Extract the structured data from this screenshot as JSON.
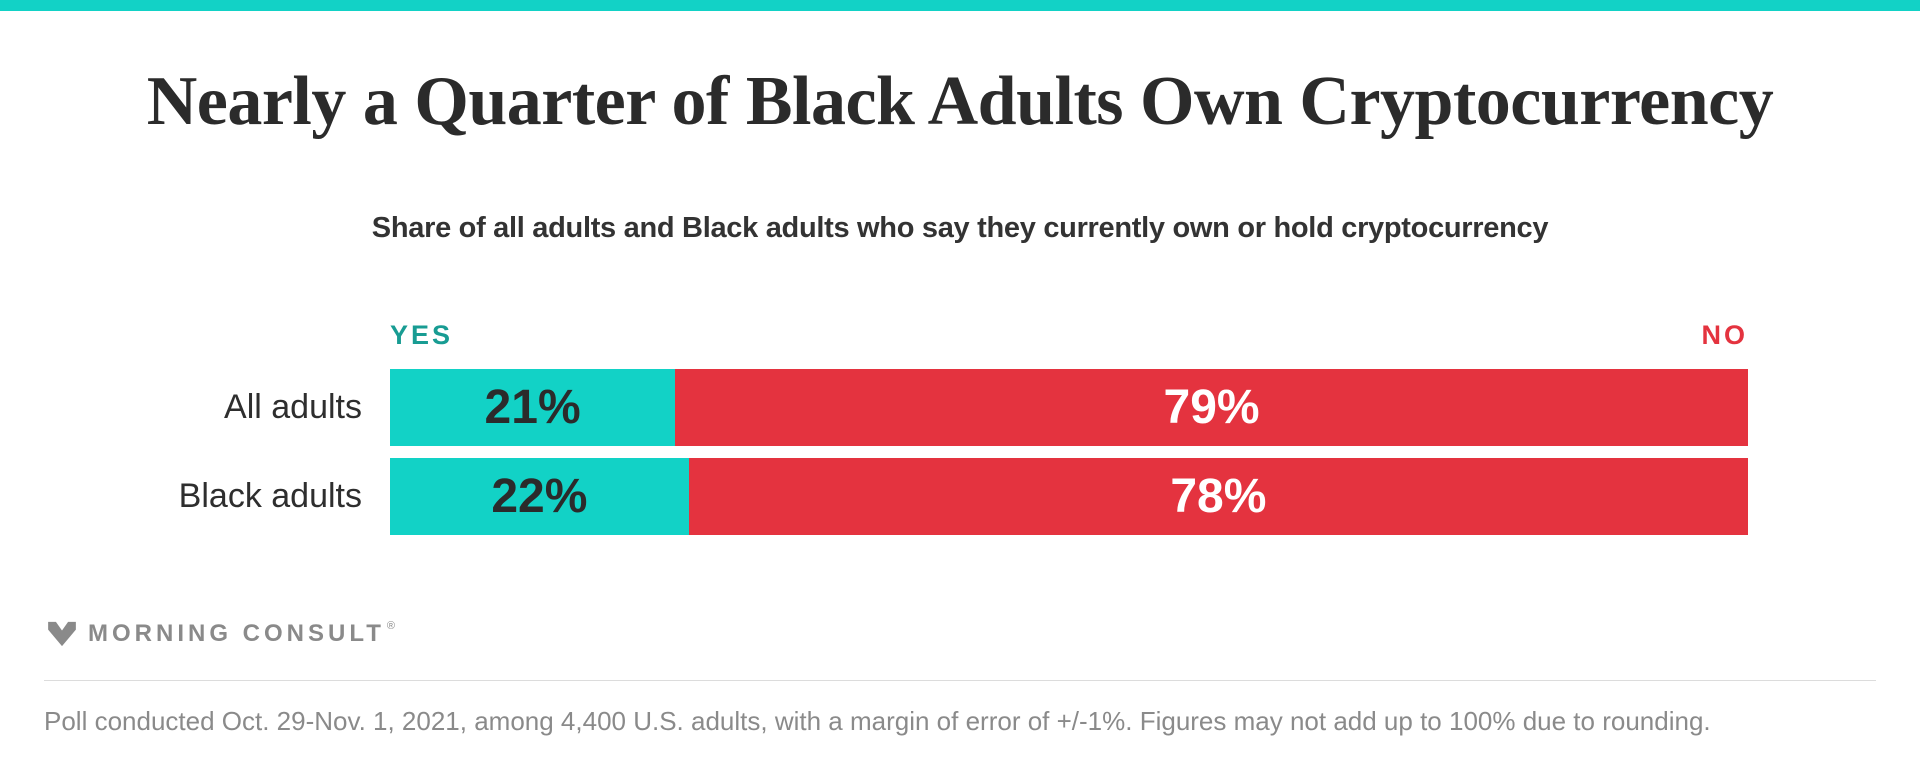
{
  "page": {
    "background": "#ffffff",
    "accent_teal": "#12D2C6",
    "accent_red": "#E4333F"
  },
  "header": {
    "title": "Nearly a Quarter of Black Adults Own Cryptocurrency",
    "subtitle": "Share of all adults and Black adults who say they currently own or hold cryptocurrency"
  },
  "chart": {
    "yes_header": "YES",
    "no_header": "NO",
    "yes_header_color": "#189C93",
    "no_header_color": "#E4333F",
    "yes_color": "#12D2C6",
    "no_color": "#E4333F",
    "rows": [
      {
        "category": "All adults",
        "yes": 21,
        "no": 79,
        "yes_label": "21%",
        "no_label": "79%"
      },
      {
        "category": "Black adults",
        "yes": 22,
        "no": 78,
        "yes_label": "22%",
        "no_label": "78%"
      }
    ]
  },
  "chart_data": {
    "type": "bar",
    "orientation": "horizontal",
    "stacked": true,
    "title": "Nearly a Quarter of Black Adults Own Cryptocurrency",
    "subtitle": "Share of all adults and Black adults who say they currently own or hold cryptocurrency",
    "categories": [
      "All adults",
      "Black adults"
    ],
    "series": [
      {
        "name": "YES",
        "color": "#12D2C6",
        "values": [
          21,
          22
        ]
      },
      {
        "name": "NO",
        "color": "#E4333F",
        "values": [
          79,
          78
        ]
      }
    ],
    "xlim": [
      0,
      100
    ],
    "value_labels": [
      [
        "21%",
        "79%"
      ],
      [
        "22%",
        "78%"
      ]
    ],
    "grid": false,
    "legend_position": "column headers above bars: YES left-aligned, NO right-aligned"
  },
  "footer": {
    "brand": "MORNING CONSULT",
    "registered_mark": "®",
    "note": "Poll conducted Oct. 29-Nov. 1, 2021, among 4,400 U.S. adults, with a margin of error of +/-1%. Figures may not add up to 100% due to rounding."
  }
}
